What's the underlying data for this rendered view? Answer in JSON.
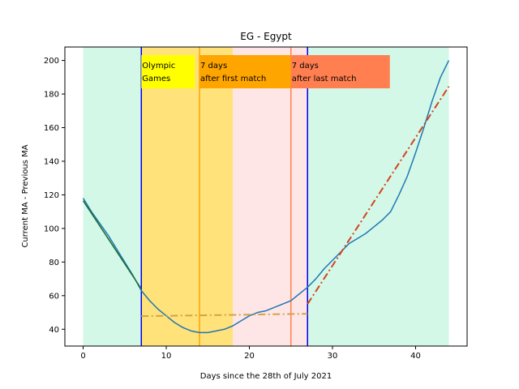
{
  "chart_data": {
    "type": "line",
    "title": "EG - Egypt",
    "xlabel": "Days since the 28th of July 2021",
    "ylabel": "Current MA - Previous MA",
    "xlim": [
      -2.2,
      46.2
    ],
    "ylim": [
      30,
      208
    ],
    "x_ticks": [
      0,
      10,
      20,
      30,
      40
    ],
    "y_ticks": [
      40,
      60,
      80,
      100,
      120,
      140,
      160,
      180,
      200
    ],
    "grid": false,
    "bands": [
      {
        "x0": 0,
        "x1": 7,
        "color": "#d4f8e8"
      },
      {
        "x0": 7,
        "x1": 18,
        "color": "#ffe27a"
      },
      {
        "x0": 18,
        "x1": 27,
        "color": "#ffe6e6"
      },
      {
        "x0": 27,
        "x1": 44,
        "color": "#d4f8e8"
      }
    ],
    "vlines": [
      {
        "x": 7,
        "color": "#0000ee"
      },
      {
        "x": 14,
        "color": "#ffa500"
      },
      {
        "x": 25,
        "color": "#ff7f50"
      },
      {
        "x": 27,
        "color": "#0000ee"
      }
    ],
    "annotations": [
      {
        "x": 7,
        "lines": [
          "Olympic",
          "Games"
        ],
        "color": "#ffff00"
      },
      {
        "x": 14,
        "lines": [
          "7 days",
          "after first match"
        ],
        "color": "#ffa500"
      },
      {
        "x": 25,
        "lines": [
          "7 days",
          "after last match"
        ],
        "color": "#ff7f50"
      }
    ],
    "series": [
      {
        "style": "solid",
        "color": "#1f77b4",
        "x": [
          0,
          1,
          2,
          3,
          4,
          5,
          6,
          7,
          8,
          9,
          10,
          11,
          12,
          13,
          14,
          15,
          16,
          17,
          18,
          19,
          20,
          21,
          22,
          23,
          24,
          25,
          26,
          27,
          28,
          29,
          30,
          31,
          32,
          33,
          34,
          35,
          36,
          37,
          38,
          39,
          40,
          41,
          42,
          43,
          44
        ],
        "y": [
          118,
          110,
          103,
          96,
          88,
          80,
          72,
          63,
          57,
          52,
          48,
          44,
          41,
          39,
          38,
          38,
          39,
          40,
          42,
          45,
          48,
          50,
          51,
          53,
          55,
          57,
          61,
          65,
          70,
          76,
          81,
          86,
          91,
          94,
          97,
          101,
          105,
          110,
          120,
          131,
          145,
          160,
          176,
          190,
          200
        ]
      },
      {
        "style": "solid",
        "color": "#1a6b2e",
        "x": [
          0,
          7
        ],
        "y": [
          116.5,
          64
        ]
      },
      {
        "style": "dashdot",
        "color": "#d4a24a",
        "x": [
          7,
          27
        ],
        "y": [
          47.8,
          49.2
        ]
      },
      {
        "style": "dashdot",
        "color": "#d4421e",
        "x": [
          27,
          44
        ],
        "y": [
          55,
          184.5
        ]
      }
    ]
  }
}
